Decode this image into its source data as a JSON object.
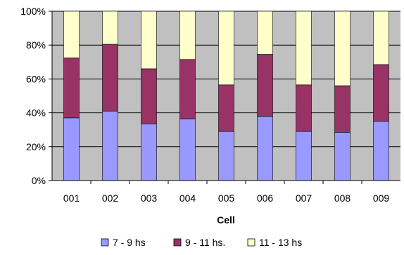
{
  "chart_data": {
    "type": "bar",
    "stacked": true,
    "normalized": true,
    "categories": [
      "001",
      "002",
      "003",
      "004",
      "005",
      "006",
      "007",
      "008",
      "009"
    ],
    "series": [
      {
        "name": "7 - 9 hs",
        "color": "#9999ff",
        "values": [
          37,
          41,
          33.5,
          36.5,
          29,
          38,
          29,
          28.5,
          35
        ]
      },
      {
        "name": "9 - 11 hs.",
        "color": "#993366",
        "values": [
          35.5,
          39.5,
          32.5,
          35,
          27.5,
          36.5,
          27.5,
          27.5,
          33.5
        ]
      },
      {
        "name": "11 - 13 hs",
        "color": "#ffffcc",
        "values": [
          27.5,
          19.5,
          34,
          28.5,
          43.5,
          25.5,
          43.5,
          44,
          31.5
        ]
      }
    ],
    "title": "",
    "xlabel": "Cell",
    "ylabel": "",
    "ylim": [
      0,
      100
    ],
    "yticks": [
      "0%",
      "20%",
      "40%",
      "60%",
      "80%",
      "100%"
    ],
    "plot_background": "#c0c0c0",
    "grid": true,
    "legend_position": "bottom"
  }
}
